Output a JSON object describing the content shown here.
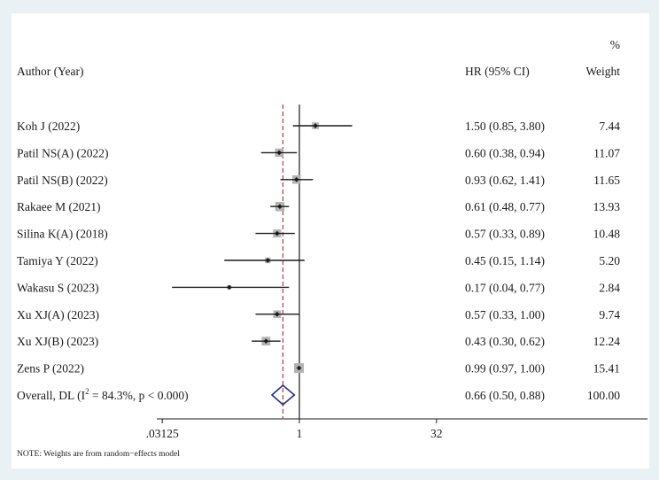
{
  "chart_data": {
    "type": "forest",
    "headers": {
      "author": "Author (Year)",
      "effect": "HR (95% CI)",
      "weight_top": "%",
      "weight": "Weight"
    },
    "studies": [
      {
        "label": "Koh J (2022)",
        "hr": 1.5,
        "lo": 0.85,
        "hi": 3.8,
        "ci_text": "1.50 (0.85, 3.80)",
        "weight": 7.44,
        "weight_text": "7.44"
      },
      {
        "label": "Patil NS(A) (2022)",
        "hr": 0.6,
        "lo": 0.38,
        "hi": 0.94,
        "ci_text": "0.60 (0.38, 0.94)",
        "weight": 11.07,
        "weight_text": "11.07"
      },
      {
        "label": "Patil NS(B) (2022)",
        "hr": 0.93,
        "lo": 0.62,
        "hi": 1.41,
        "ci_text": "0.93 (0.62, 1.41)",
        "weight": 11.65,
        "weight_text": "11.65"
      },
      {
        "label": "Rakaee M (2021)",
        "hr": 0.61,
        "lo": 0.48,
        "hi": 0.77,
        "ci_text": "0.61 (0.48, 0.77)",
        "weight": 13.93,
        "weight_text": "13.93"
      },
      {
        "label": "Silina K(A) (2018)",
        "hr": 0.57,
        "lo": 0.33,
        "hi": 0.89,
        "ci_text": "0.57 (0.33, 0.89)",
        "weight": 10.48,
        "weight_text": "10.48"
      },
      {
        "label": "Tamiya Y (2022)",
        "hr": 0.45,
        "lo": 0.15,
        "hi": 1.14,
        "ci_text": "0.45 (0.15, 1.14)",
        "weight": 5.2,
        "weight_text": "5.20"
      },
      {
        "label": "Wakasu S (2023)",
        "hr": 0.17,
        "lo": 0.04,
        "hi": 0.77,
        "ci_text": "0.17 (0.04, 0.77)",
        "weight": 2.84,
        "weight_text": "2.84"
      },
      {
        "label": "Xu XJ(A) (2023)",
        "hr": 0.57,
        "lo": 0.33,
        "hi": 1.0,
        "ci_text": "0.57 (0.33, 1.00)",
        "weight": 9.74,
        "weight_text": "9.74"
      },
      {
        "label": "Xu XJ(B) (2023)",
        "hr": 0.43,
        "lo": 0.3,
        "hi": 0.62,
        "ci_text": "0.43 (0.30, 0.62)",
        "weight": 12.24,
        "weight_text": "12.24"
      },
      {
        "label": "Zens P (2022)",
        "hr": 0.99,
        "lo": 0.97,
        "hi": 1.0,
        "ci_text": "0.99 (0.97, 1.00)",
        "weight": 15.41,
        "weight_text": "15.41"
      }
    ],
    "overall": {
      "label_prefix": "Overall, DL (I",
      "label_sup": "2",
      "label_suffix": " = 84.3%, p < 0.000)",
      "hr": 0.66,
      "lo": 0.5,
      "hi": 0.88,
      "ci_text": "0.66 (0.50, 0.88)",
      "weight_text": "100.00"
    },
    "x_scale": "log2",
    "x_ticks": [
      {
        "value": 0.03125,
        "label": ".03125"
      },
      {
        "value": 1,
        "label": "1"
      },
      {
        "value": 32,
        "label": "32"
      }
    ],
    "null_line": 1,
    "note": "NOTE: Weights are from random−effects model",
    "colors": {
      "box": "#b3b3b3",
      "point": "#1a1a1a",
      "ci": "#1a1a1a",
      "diamond": "#1f2d8c",
      "overall_line": "#b0303a",
      "null_line": "#1a1a1a"
    }
  }
}
